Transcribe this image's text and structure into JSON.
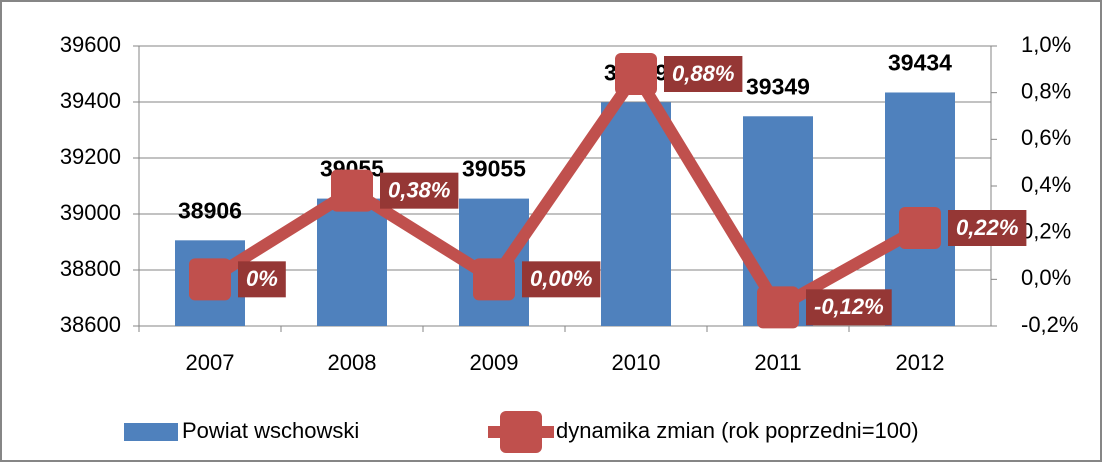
{
  "chart_data": {
    "type": "bar",
    "categories": [
      "2007",
      "2008",
      "2009",
      "2010",
      "2011",
      "2012"
    ],
    "series": [
      {
        "name": "Powiat wschowski",
        "color": "#4f81bd",
        "values": [
          38906,
          39055,
          39055,
          39399,
          39349,
          39434
        ]
      },
      {
        "name": "dynamika zmian (rok poprzedni=100)",
        "type": "line",
        "axis": "y2",
        "color": "#c0504d",
        "values": [
          0,
          0.38,
          0.0,
          0.88,
          -0.12,
          0.22
        ],
        "value_labels": [
          "0%",
          "0,38%",
          "0,00%",
          "0,88%",
          "-0,12%",
          "0,22%"
        ]
      }
    ],
    "ylim": [
      38600,
      39600
    ],
    "yticks": [
      38600,
      38800,
      39000,
      39200,
      39400,
      39600
    ],
    "y2lim": [
      -0.2,
      1.0
    ],
    "y2ticks": [
      {
        "value": -0.2,
        "label": "-0,2%"
      },
      {
        "value": 0,
        "label": "0,0%"
      },
      {
        "value": 0.2,
        "label": "0,2%"
      },
      {
        "value": 0.4,
        "label": "0,4%"
      },
      {
        "value": 0.6,
        "label": "0,6%"
      },
      {
        "value": 0.8,
        "label": "0,8%"
      },
      {
        "value": 1.0,
        "label": "1,0%"
      }
    ],
    "grid": true,
    "legend": "bottom"
  }
}
